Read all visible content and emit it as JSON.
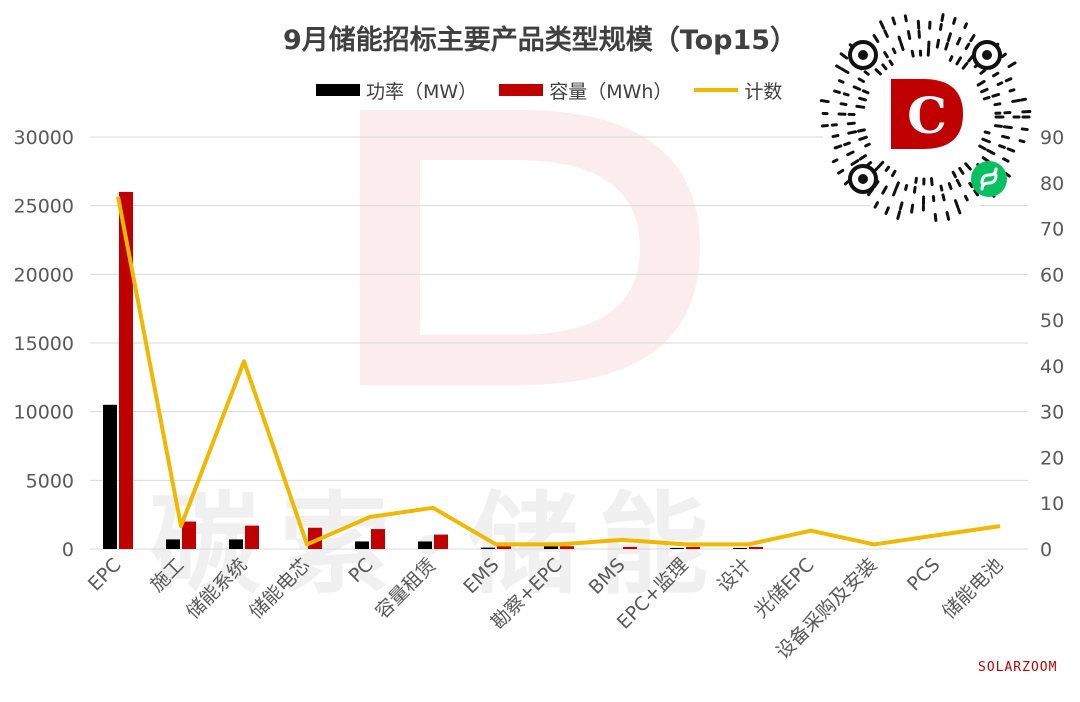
{
  "chart_data": {
    "type": "bar",
    "title": "9月储能招标主要产品类型规模（Top15）",
    "categories": [
      "EPC",
      "施工",
      "储能系统",
      "储能电芯",
      "PC",
      "容量租赁",
      "EMS",
      "勘察+EPC",
      "BMS",
      "EPC+监理",
      "设计",
      "光储EPC",
      "设备采购及安装",
      "PCS",
      "储能电池"
    ],
    "series": [
      {
        "name": "功率（MW）",
        "type": "bar",
        "axis": "left",
        "color": "#000000",
        "values": [
          10500,
          700,
          700,
          0,
          550,
          550,
          100,
          200,
          0,
          80,
          80,
          0,
          0,
          0,
          0
        ]
      },
      {
        "name": "容量（MWh）",
        "type": "bar",
        "axis": "left",
        "color": "#c00000",
        "values": [
          26000,
          2000,
          1700,
          1550,
          1450,
          1050,
          200,
          200,
          150,
          150,
          150,
          0,
          0,
          0,
          0
        ]
      },
      {
        "name": "计数",
        "type": "line",
        "axis": "right",
        "color": "#f0b800",
        "values": [
          77,
          5,
          41,
          1,
          7,
          9,
          1,
          1,
          2,
          1,
          1,
          4,
          1,
          3,
          5
        ]
      }
    ],
    "y_left": {
      "min": 0,
      "max": 30000,
      "ticks": [
        0,
        5000,
        10000,
        15000,
        20000,
        25000,
        30000
      ]
    },
    "y_right": {
      "min": 0,
      "max": 90,
      "ticks": [
        0,
        10,
        20,
        30,
        40,
        50,
        60,
        70,
        80,
        90
      ]
    },
    "grid": true,
    "legend_position": "top-center"
  },
  "watermark": "碳索·储能",
  "brand": "SOLARZOOM",
  "qr_logo_letter": "C",
  "colors": {
    "power": "#000000",
    "capacity": "#c00000",
    "count": "#f0b800",
    "grid": "#d9d9d9",
    "text": "#595959"
  }
}
